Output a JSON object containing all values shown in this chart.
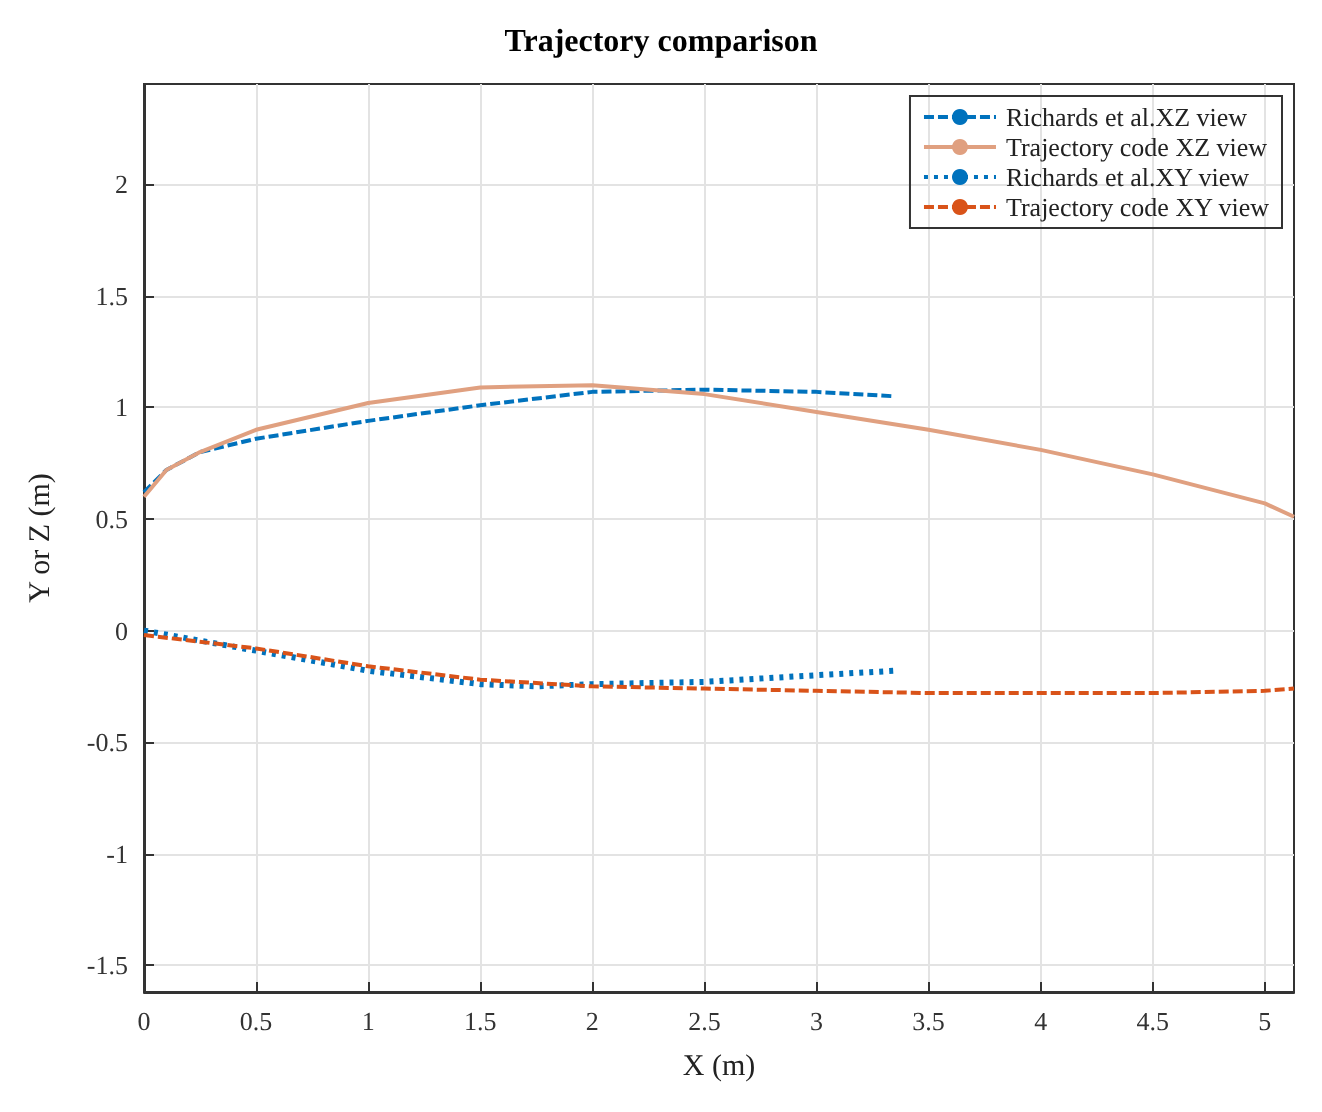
{
  "chart_data": {
    "type": "line",
    "title": "Trajectory comparison",
    "xlabel": "X (m)",
    "ylabel": "Y or Z (m)",
    "xlim": [
      0,
      5.13
    ],
    "xticks": [
      0,
      0.5,
      1,
      1.5,
      2,
      2.5,
      3,
      3.5,
      4,
      4.5,
      5
    ],
    "ylim": [
      -1.62,
      2.45
    ],
    "yticks": [
      -1.5,
      -1,
      -0.5,
      0,
      0.5,
      1,
      1.5,
      2
    ],
    "grid": true,
    "legend": "top right",
    "marker": "none",
    "series": [
      {
        "name": "Richards et al.XZ view",
        "color": "#0072bd",
        "line_style": "dashed",
        "x": [
          0,
          0.1,
          0.25,
          0.5,
          1,
          1.5,
          2,
          2.5,
          3,
          3.35
        ],
        "values": [
          0.62,
          0.72,
          0.8,
          0.86,
          0.94,
          1.01,
          1.07,
          1.08,
          1.07,
          1.05
        ]
      },
      {
        "name": "Trajectory code XZ view",
        "color": "#e0a080",
        "line_style": "solid",
        "x": [
          0,
          0.1,
          0.25,
          0.5,
          1,
          1.5,
          2,
          2.5,
          3,
          3.5,
          4,
          4.5,
          5,
          5.13
        ],
        "values": [
          0.6,
          0.72,
          0.8,
          0.9,
          1.02,
          1.09,
          1.1,
          1.06,
          0.98,
          0.9,
          0.81,
          0.7,
          0.57,
          0.51
        ]
      },
      {
        "name": "Richards et al.XY view",
        "color": "#0072bd",
        "line_style": "dotted",
        "x": [
          0,
          0.5,
          1,
          1.5,
          1.75,
          2,
          2.5,
          3,
          3.35
        ],
        "values": [
          0,
          -0.09,
          -0.18,
          -0.24,
          -0.25,
          -0.24,
          -0.23,
          -0.2,
          -0.18
        ]
      },
      {
        "name": "Trajectory code XY view",
        "color": "#d95319",
        "line_style": "dashed",
        "x": [
          0,
          0.5,
          1,
          1.5,
          2,
          2.5,
          3,
          3.5,
          4,
          4.5,
          5,
          5.13
        ],
        "values": [
          -0.02,
          -0.08,
          -0.16,
          -0.22,
          -0.25,
          -0.26,
          -0.27,
          -0.28,
          -0.28,
          -0.28,
          -0.27,
          -0.26
        ]
      }
    ]
  }
}
